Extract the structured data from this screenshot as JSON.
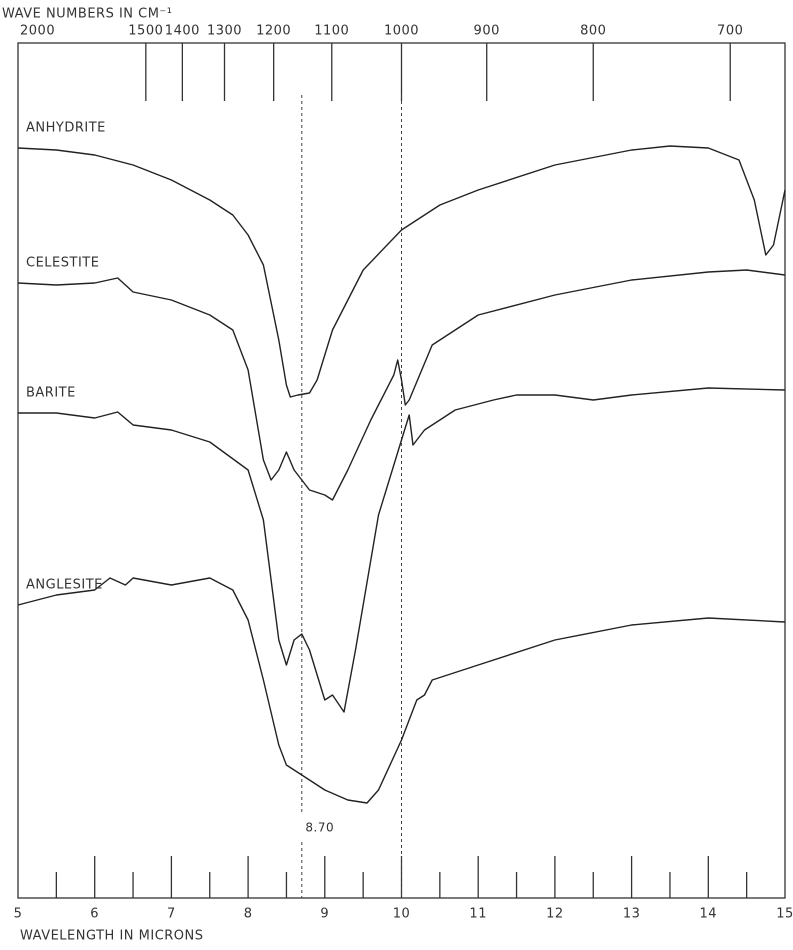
{
  "chart_data": {
    "type": "line",
    "x_label": "WAVELENGTH IN MICRONS",
    "x2_label": "WAVE NUMBERS IN CM⁻¹",
    "xlim": [
      5,
      15
    ],
    "xticks": [
      5,
      6,
      7,
      8,
      9,
      10,
      11,
      12,
      13,
      14,
      15
    ],
    "xminor": [
      5.5,
      6.5,
      7.5,
      8.5,
      9.5,
      10.5,
      11.5,
      12.5,
      13.5,
      14.5
    ],
    "x2ticks": [
      2000,
      1500,
      1400,
      1300,
      1200,
      1100,
      1000,
      900,
      800,
      700
    ],
    "ylim": [
      0,
      855
    ],
    "reference_lines": [
      {
        "value": 8.7,
        "label": "8.70"
      },
      {
        "value": 10
      }
    ],
    "series": [
      {
        "name": "ANHYDRITE",
        "color": "#222222",
        "x": [
          5.0,
          5.5,
          6.0,
          6.5,
          7.0,
          7.5,
          7.8,
          8.0,
          8.2,
          8.4,
          8.5,
          8.55,
          8.65,
          8.8,
          8.9,
          9.1,
          9.5,
          10.0,
          10.5,
          11,
          12,
          13,
          13.5,
          14.0,
          14.4,
          14.6,
          14.75,
          14.85,
          15.0
        ],
        "values": [
          750,
          748,
          743,
          733,
          718,
          698,
          683,
          663,
          633,
          558,
          513,
          501,
          503,
          505,
          518,
          568,
          628,
          668,
          693,
          708,
          733,
          748,
          752,
          750,
          738,
          698,
          643,
          653,
          708
        ]
      },
      {
        "name": "CELESTITE",
        "color": "#222222",
        "x": [
          5.0,
          5.5,
          6.0,
          6.3,
          6.5,
          7.0,
          7.5,
          7.8,
          8.0,
          8.2,
          8.3,
          8.4,
          8.5,
          8.6,
          8.8,
          9.0,
          9.1,
          9.3,
          9.6,
          9.9,
          9.95,
          10.0,
          10.05,
          10.1,
          10.4,
          11,
          12,
          13,
          14,
          14.5,
          15
        ],
        "values": [
          615,
          613,
          615,
          620,
          606,
          598,
          583,
          568,
          528,
          438,
          418,
          428,
          446,
          428,
          408,
          403,
          398,
          428,
          478,
          523,
          538,
          518,
          493,
          498,
          553,
          583,
          603,
          618,
          626,
          628,
          623
        ]
      },
      {
        "name": "BARITE",
        "color": "#222222",
        "x": [
          5,
          5.5,
          6.0,
          6.3,
          6.5,
          7.0,
          7.5,
          8.0,
          8.2,
          8.4,
          8.5,
          8.6,
          8.7,
          8.8,
          9.0,
          9.1,
          9.25,
          9.4,
          9.7,
          10.0,
          10.1,
          10.15,
          10.3,
          10.7,
          11.2,
          11.5,
          12.0,
          12.5,
          13,
          14,
          15
        ],
        "values": [
          485,
          485,
          480,
          486,
          473,
          468,
          456,
          428,
          378,
          258,
          233,
          258,
          264,
          248,
          198,
          203,
          186,
          248,
          383,
          458,
          483,
          453,
          468,
          488,
          498,
          503,
          503,
          498,
          503,
          510,
          508
        ]
      },
      {
        "name": "ANGLESITE",
        "color": "#222222",
        "x": [
          5,
          5.5,
          6.0,
          6.2,
          6.4,
          6.5,
          7.0,
          7.5,
          7.8,
          8.0,
          8.2,
          8.4,
          8.5,
          8.6,
          8.7,
          9.0,
          9.3,
          9.55,
          9.7,
          10.0,
          10.2,
          10.3,
          10.4,
          11.0,
          12.0,
          13.0,
          14.0,
          15.0
        ],
        "values": [
          293,
          303,
          308,
          320,
          313,
          320,
          313,
          320,
          308,
          278,
          218,
          153,
          133,
          128,
          123,
          108,
          98,
          95,
          108,
          158,
          198,
          203,
          218,
          233,
          258,
          273,
          280,
          276
        ]
      }
    ]
  }
}
